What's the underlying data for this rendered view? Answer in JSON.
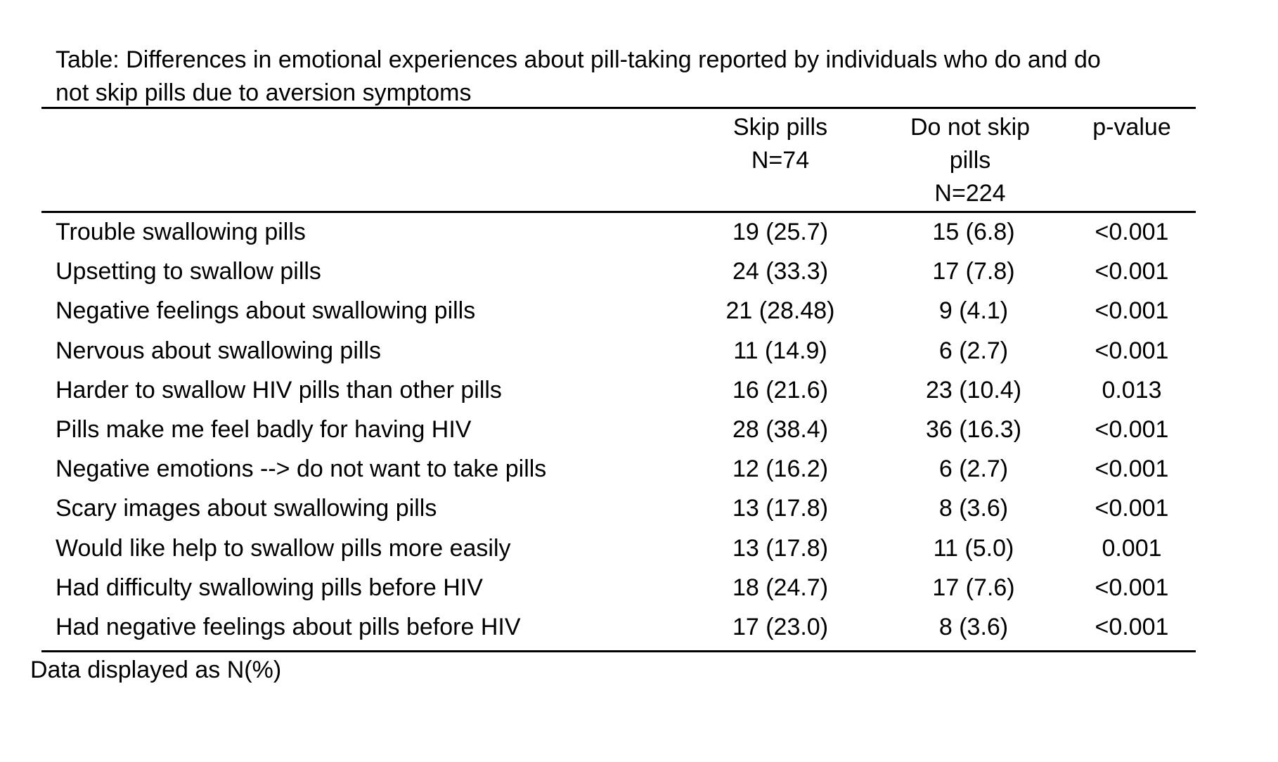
{
  "caption": {
    "line1": "Table: Differences in emotional experiences about pill-taking reported by individuals who do and do",
    "line2": "not skip pills due to aversion symptoms"
  },
  "columns": {
    "skip": {
      "line1": "Skip pills",
      "line2": "N=74"
    },
    "noskip": {
      "line1": "Do not skip",
      "line2": "pills",
      "line3": "N=224"
    },
    "pvalue": {
      "line1": "p-value"
    }
  },
  "rows": [
    {
      "label": "Trouble swallowing pills",
      "skip": "19 (25.7)",
      "noskip": "15 (6.8)",
      "p": "<0.001"
    },
    {
      "label": "Upsetting to swallow pills",
      "skip": "24 (33.3)",
      "noskip": "17 (7.8)",
      "p": "<0.001"
    },
    {
      "label": "Negative feelings about swallowing pills",
      "skip": "21 (28.48)",
      "noskip": "9 (4.1)",
      "p": "<0.001"
    },
    {
      "label": "Nervous about swallowing pills",
      "skip": "11 (14.9)",
      "noskip": "6 (2.7)",
      "p": "<0.001"
    },
    {
      "label": "Harder to swallow HIV pills than other pills",
      "skip": "16 (21.6)",
      "noskip": "23 (10.4)",
      "p": "0.013"
    },
    {
      "label": "Pills make me feel badly for having HIV",
      "skip": "28 (38.4)",
      "noskip": "36 (16.3)",
      "p": "<0.001"
    },
    {
      "label": "Negative emotions --> do not want to take pills",
      "skip": "12 (16.2)",
      "noskip": "6 (2.7)",
      "p": "<0.001"
    },
    {
      "label": "Scary images about swallowing pills",
      "skip": "13 (17.8)",
      "noskip": "8 (3.6)",
      "p": "<0.001"
    },
    {
      "label": "Would like help to swallow pills more easily",
      "skip": "13 (17.8)",
      "noskip": "11 (5.0)",
      "p": "0.001"
    },
    {
      "label": "Had difficulty swallowing pills before HIV",
      "skip": "18 (24.7)",
      "noskip": "17 (7.6)",
      "p": "<0.001"
    },
    {
      "label": "Had negative feelings about pills before HIV",
      "skip": "17 (23.0)",
      "noskip": "8 (3.6)",
      "p": "<0.001"
    }
  ],
  "footnote": "Data displayed as N(%)"
}
